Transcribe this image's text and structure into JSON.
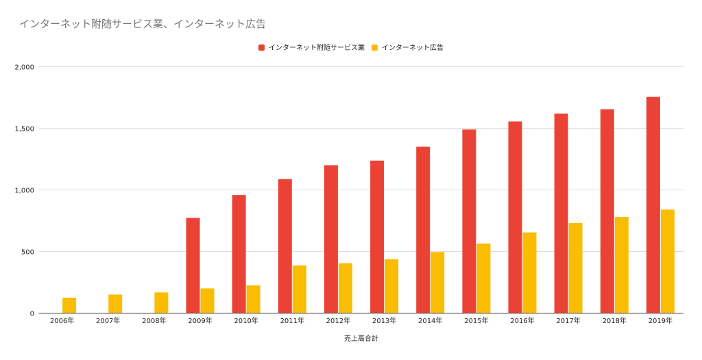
{
  "chart_data": {
    "type": "bar",
    "title": "インターネット附随サービス業、インターネット広告",
    "xlabel": "売上高合計",
    "ylabel": "",
    "categories": [
      "2006年",
      "2007年",
      "2008年",
      "2009年",
      "2010年",
      "2011年",
      "2012年",
      "2013年",
      "2014年",
      "2015年",
      "2016年",
      "2017年",
      "2018年",
      "2019年"
    ],
    "ylim": [
      0,
      2000
    ],
    "yticks": [
      0,
      500,
      1000,
      1500,
      2000
    ],
    "ytick_labels": [
      "0",
      "500",
      "1,000",
      "1,500",
      "2,000"
    ],
    "grid": true,
    "legend_position": "top-center",
    "series": [
      {
        "name": "インターネット附随サービス業",
        "color": "#ea4335",
        "values": [
          null,
          null,
          null,
          770,
          955,
          1085,
          1198,
          1235,
          1348,
          1488,
          1553,
          1617,
          1652,
          1752
        ]
      },
      {
        "name": "インターネット広告",
        "color": "#fbbc04",
        "values": [
          122,
          148,
          165,
          198,
          222,
          385,
          402,
          435,
          493,
          562,
          652,
          728,
          778,
          838
        ]
      }
    ]
  }
}
